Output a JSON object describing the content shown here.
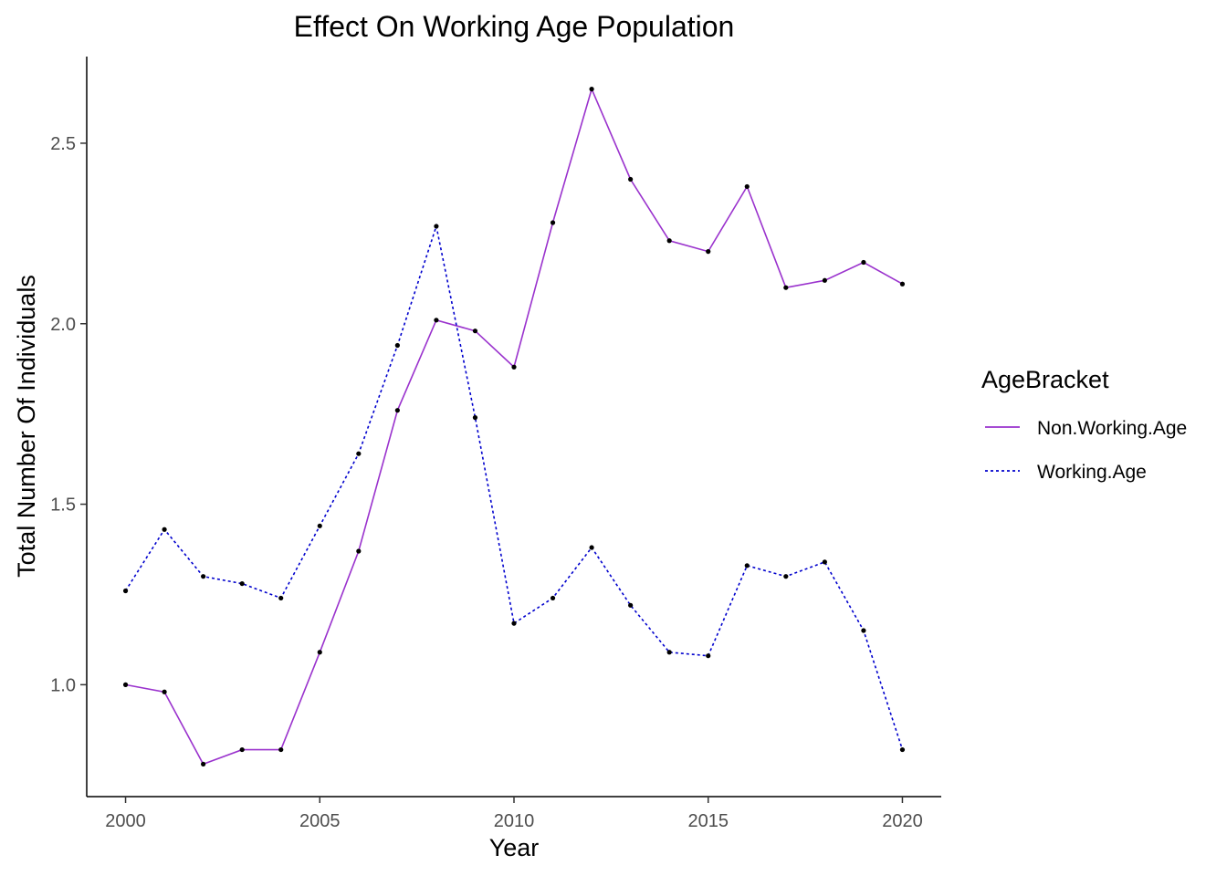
{
  "chart_data": {
    "type": "line",
    "title": "Effect On Working Age Population",
    "xlabel": "Year",
    "ylabel": "Total Number Of Individuals",
    "x": [
      2000,
      2001,
      2002,
      2003,
      2004,
      2005,
      2006,
      2007,
      2008,
      2009,
      2010,
      2011,
      2012,
      2013,
      2014,
      2015,
      2016,
      2017,
      2018,
      2019,
      2020
    ],
    "xlim": [
      1999,
      2021
    ],
    "ylim": [
      0.69,
      2.74
    ],
    "x_ticks": [
      2000,
      2005,
      2010,
      2015,
      2020
    ],
    "x_tick_labels": [
      "2000",
      "2005",
      "2010",
      "2015",
      "2020"
    ],
    "y_ticks": [
      1.0,
      1.5,
      2.0,
      2.5
    ],
    "y_tick_labels": [
      "1.0",
      "1.5",
      "2.0",
      "2.5"
    ],
    "grid": false,
    "legend": {
      "title": "AgeBracket",
      "position": "right"
    },
    "series": [
      {
        "name": "Non.Working.Age",
        "color": "#9a32cd",
        "line_style": "solid",
        "values": [
          1.0,
          0.98,
          0.78,
          0.82,
          0.82,
          1.09,
          1.37,
          1.76,
          2.01,
          1.98,
          1.88,
          2.28,
          2.65,
          2.4,
          2.23,
          2.2,
          2.38,
          2.1,
          2.12,
          2.17,
          2.11
        ]
      },
      {
        "name": "Working.Age",
        "color": "#0000cd",
        "line_style": "dotted",
        "values": [
          1.26,
          1.43,
          1.3,
          1.28,
          1.24,
          1.44,
          1.64,
          1.94,
          2.27,
          1.74,
          1.17,
          1.24,
          1.38,
          1.22,
          1.09,
          1.08,
          1.33,
          1.3,
          1.34,
          1.15,
          0.82
        ]
      }
    ]
  }
}
